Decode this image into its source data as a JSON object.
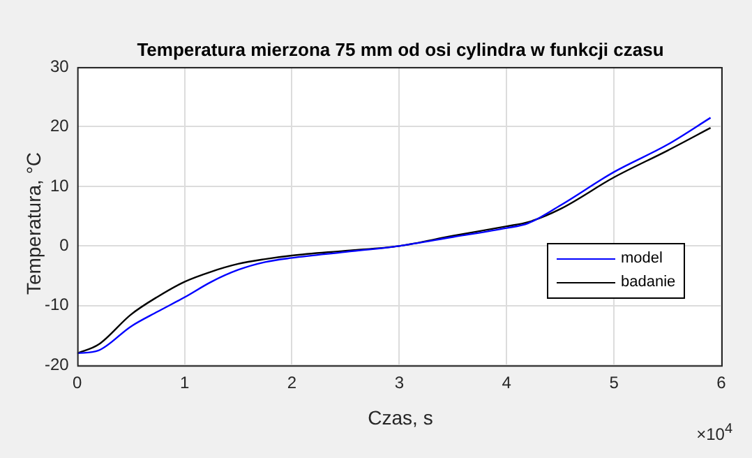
{
  "chart_data": {
    "type": "line",
    "title": "Temperatura mierzona 75 mm od osi cylindra w funkcji czasu",
    "xlabel": "Czas, s",
    "ylabel": "Temperatura, °C",
    "x": [
      0,
      0.2,
      0.5,
      0.75,
      1,
      1.25,
      1.5,
      1.75,
      2,
      2.5,
      3,
      3.5,
      4,
      4.2,
      4.5,
      5,
      5.5,
      5.9
    ],
    "series": [
      {
        "name": "model",
        "color": "#0000ff",
        "values": [
          -18,
          -17.5,
          -13.5,
          -11,
          -8.6,
          -6,
          -4,
          -2.7,
          -2,
          -1,
          0,
          1.5,
          3,
          3.8,
          6.8,
          12.4,
          17,
          21.5
        ]
      },
      {
        "name": "badanie",
        "color": "#000000",
        "values": [
          -18,
          -16.5,
          -11.5,
          -8.5,
          -6,
          -4.3,
          -3,
          -2.2,
          -1.6,
          -0.8,
          0,
          1.7,
          3.3,
          4,
          6.2,
          11.5,
          16,
          19.8
        ]
      }
    ],
    "xlim": [
      0,
      6
    ],
    "xticks": [
      0,
      1,
      2,
      3,
      4,
      5,
      6
    ],
    "ylim": [
      -20,
      30
    ],
    "yticks": [
      -20,
      -10,
      0,
      10,
      20,
      30
    ],
    "annotations": [
      "×10$^{4}$"
    ],
    "grid": true,
    "legend": "bottom right",
    "marker": "none",
    "line_style": "solid"
  }
}
